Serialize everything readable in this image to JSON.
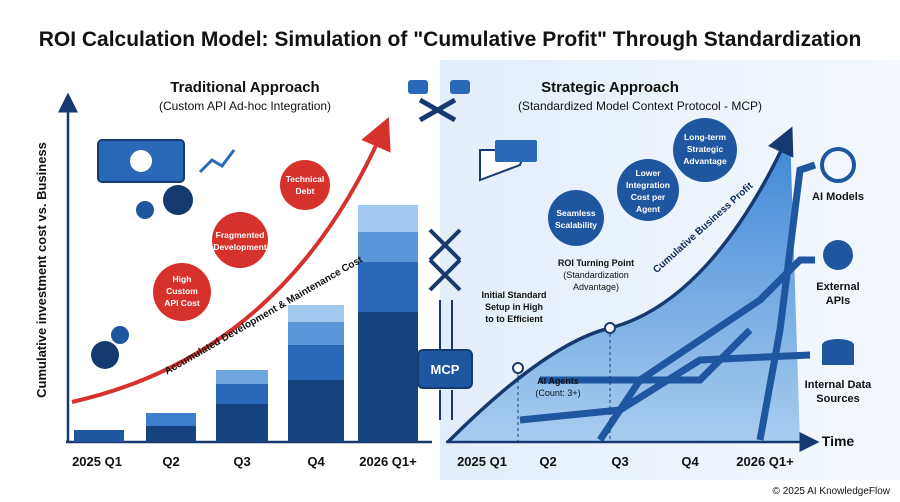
{
  "title": "ROI Calculation Model: Simulation of \"Cumulative Profit\" Through Standardization",
  "left": {
    "heading": "Traditional Approach",
    "subheading": "(Custom API Ad-hoc Integration)",
    "y_axis_label": "Cumulative investment cost vs. Business",
    "curve_label": "Accumulated Development & Maintenance Cost",
    "callouts": [
      [
        "High",
        "Custom",
        "API Cost"
      ],
      [
        "Fragmented",
        "Development"
      ],
      [
        "Technical",
        "Debt"
      ]
    ],
    "x_labels": [
      "2025 Q1",
      "Q2",
      "Q3",
      "Q4",
      "2026 Q1+"
    ]
  },
  "center": {
    "label": "MCP"
  },
  "right": {
    "heading": "Strategic Approach",
    "subheading": "(Standardized Model Context Protocol - MCP)",
    "callouts": [
      [
        "Seamless",
        "Scalability"
      ],
      [
        "Lower",
        "Integration",
        "Cost per",
        "Agent"
      ],
      [
        "Long-term",
        "Strategic",
        "Advantage"
      ]
    ],
    "curve_label": "Cumulative Business Profit",
    "turning_point": [
      "ROI Turning Point",
      "(Standardization",
      "Advantage)"
    ],
    "initial_setup": [
      "Initial Standard",
      "Setup in High",
      "to to Efficient"
    ],
    "agents": [
      "AI Agents",
      "(Count: 3+)"
    ],
    "resources": [
      [
        "AI Models"
      ],
      [
        "External",
        "APIs"
      ],
      [
        "Internal Data",
        "Sources"
      ]
    ],
    "x_axis_label": "Time",
    "x_labels": [
      "2025 Q1",
      "Q2",
      "Q3",
      "Q4",
      "2026 Q1+"
    ]
  },
  "footer": "© 2025 AI KnowledgeFlow"
}
